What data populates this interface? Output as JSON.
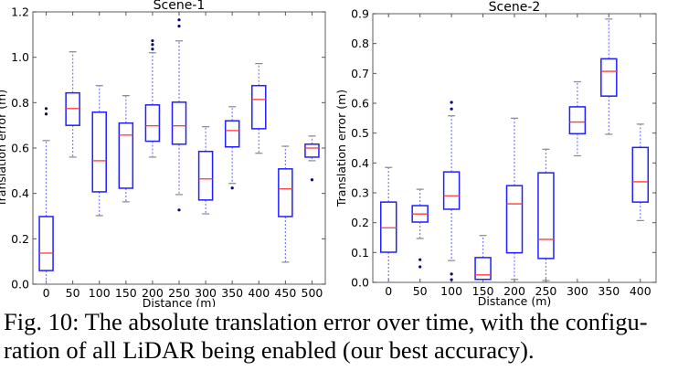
{
  "chart_data": [
    {
      "type": "box",
      "title": "Scene-1",
      "xlabel": "Distance (m)",
      "ylabel": "Translation error (m)",
      "ylim": [
        0.0,
        1.2
      ],
      "yticks": [
        "0.0",
        "0.2",
        "0.4",
        "0.6",
        "0.8",
        "1.0",
        "1.2"
      ],
      "ytick_values": [
        0.0,
        0.2,
        0.4,
        0.6,
        0.8,
        1.0,
        1.2
      ],
      "categories": [
        "0",
        "50",
        "100",
        "150",
        "200",
        "250",
        "300",
        "350",
        "400",
        "450",
        "500"
      ],
      "boxes": [
        {
          "whisker_low": 0.0,
          "q1": 0.06,
          "median": 0.137,
          "q3": 0.298,
          "whisker_high": 0.633,
          "outliers": [
            0.75,
            0.774
          ]
        },
        {
          "whisker_low": 0.56,
          "q1": 0.7,
          "median": 0.774,
          "q3": 0.843,
          "whisker_high": 1.024,
          "outliers": []
        },
        {
          "whisker_low": 0.302,
          "q1": 0.407,
          "median": 0.544,
          "q3": 0.758,
          "whisker_high": 0.875,
          "outliers": []
        },
        {
          "whisker_low": 0.363,
          "q1": 0.423,
          "median": 0.657,
          "q3": 0.71,
          "whisker_high": 0.831,
          "outliers": []
        },
        {
          "whisker_low": 0.56,
          "q1": 0.63,
          "median": 0.698,
          "q3": 0.79,
          "whisker_high": 1.02,
          "outliers": [
            1.036,
            1.056,
            1.073
          ]
        },
        {
          "whisker_low": 0.395,
          "q1": 0.617,
          "median": 0.698,
          "q3": 0.802,
          "whisker_high": 1.072,
          "outliers": [
            0.327,
            1.137,
            1.165
          ]
        },
        {
          "whisker_low": 0.31,
          "q1": 0.371,
          "median": 0.464,
          "q3": 0.585,
          "whisker_high": 0.694,
          "outliers": []
        },
        {
          "whisker_low": 0.444,
          "q1": 0.605,
          "median": 0.677,
          "q3": 0.72,
          "whisker_high": 0.782,
          "outliers": [
            0.424
          ]
        },
        {
          "whisker_low": 0.577,
          "q1": 0.685,
          "median": 0.814,
          "q3": 0.875,
          "whisker_high": 0.972,
          "outliers": []
        },
        {
          "whisker_low": 0.097,
          "q1": 0.298,
          "median": 0.42,
          "q3": 0.508,
          "whisker_high": 0.608,
          "outliers": []
        },
        {
          "whisker_low": 0.544,
          "q1": 0.56,
          "median": 0.6,
          "q3": 0.617,
          "whisker_high": 0.653,
          "outliers": [
            0.46
          ]
        }
      ],
      "grid": false,
      "colors": {
        "box": "#1f1fff",
        "median": "#ff3b3b",
        "whisker": "#7a7aff",
        "cap": "#888888",
        "outlier": "#0a0a6e",
        "axis": "#777777"
      }
    },
    {
      "type": "box",
      "title": "Scene-2",
      "xlabel": "Distance (m)",
      "ylabel": "Translation error (m)",
      "ylim": [
        0.0,
        0.9
      ],
      "yticks": [
        "0.0",
        "0.1",
        "0.2",
        "0.3",
        "0.4",
        "0.5",
        "0.6",
        "0.7",
        "0.8",
        "0.9"
      ],
      "ytick_values": [
        0.0,
        0.1,
        0.2,
        0.3,
        0.4,
        0.5,
        0.6,
        0.7,
        0.8,
        0.9
      ],
      "categories": [
        "0",
        "50",
        "100",
        "150",
        "200",
        "250",
        "300",
        "350",
        "400"
      ],
      "boxes": [
        {
          "whisker_low": 0.0,
          "q1": 0.101,
          "median": 0.183,
          "q3": 0.269,
          "whisker_high": 0.385,
          "outliers": []
        },
        {
          "whisker_low": 0.147,
          "q1": 0.202,
          "median": 0.229,
          "q3": 0.257,
          "whisker_high": 0.312,
          "outliers": [
            0.052,
            0.076
          ]
        },
        {
          "whisker_low": 0.073,
          "q1": 0.245,
          "median": 0.29,
          "q3": 0.37,
          "whisker_high": 0.558,
          "outliers": [
            0.009,
            0.028,
            0.581,
            0.603
          ]
        },
        {
          "whisker_low": 0.0,
          "q1": 0.01,
          "median": 0.025,
          "q3": 0.083,
          "whisker_high": 0.157,
          "outliers": []
        },
        {
          "whisker_low": 0.01,
          "q1": 0.099,
          "median": 0.263,
          "q3": 0.324,
          "whisker_high": 0.55,
          "outliers": []
        },
        {
          "whisker_low": 0.006,
          "q1": 0.08,
          "median": 0.144,
          "q3": 0.367,
          "whisker_high": 0.446,
          "outliers": []
        },
        {
          "whisker_low": 0.424,
          "q1": 0.498,
          "median": 0.537,
          "q3": 0.588,
          "whisker_high": 0.672,
          "outliers": []
        },
        {
          "whisker_low": 0.496,
          "q1": 0.624,
          "median": 0.707,
          "q3": 0.749,
          "whisker_high": 0.882,
          "outliers": []
        },
        {
          "whisker_low": 0.207,
          "q1": 0.269,
          "median": 0.337,
          "q3": 0.452,
          "whisker_high": 0.53,
          "outliers": []
        }
      ],
      "grid": false,
      "colors": {
        "box": "#1f1fff",
        "median": "#ff3b3b",
        "whisker": "#7a7aff",
        "cap": "#888888",
        "outlier": "#0a0a6e",
        "axis": "#777777"
      }
    }
  ],
  "caption": {
    "line1": "Fig. 10: The absolute translation error over time, with the configu-",
    "line2": "ration of all LiDAR being enabled (our best accuracy)."
  }
}
